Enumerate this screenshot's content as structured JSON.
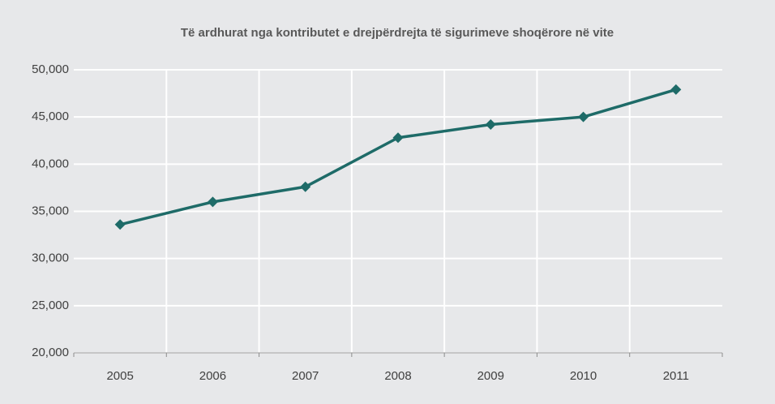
{
  "chart_data": {
    "type": "line",
    "title": "Të ardhurat nga kontributet e drejpërdrejta të sigurimeve shoqërore në vite",
    "categories": [
      "2005",
      "2006",
      "2007",
      "2008",
      "2009",
      "2010",
      "2011"
    ],
    "values": [
      33600,
      36000,
      37600,
      42800,
      44200,
      45000,
      47900
    ],
    "color": "#1e6b68",
    "ylim": [
      20000,
      50000
    ],
    "yticks": [
      {
        "value": 20000,
        "label": "20,000"
      },
      {
        "value": 25000,
        "label": "25,000"
      },
      {
        "value": 30000,
        "label": "30,000"
      },
      {
        "value": 35000,
        "label": "35,000"
      },
      {
        "value": 40000,
        "label": "40,000"
      },
      {
        "value": 45000,
        "label": "45,000"
      },
      {
        "value": 50000,
        "label": "50,000"
      }
    ],
    "grid": true
  }
}
